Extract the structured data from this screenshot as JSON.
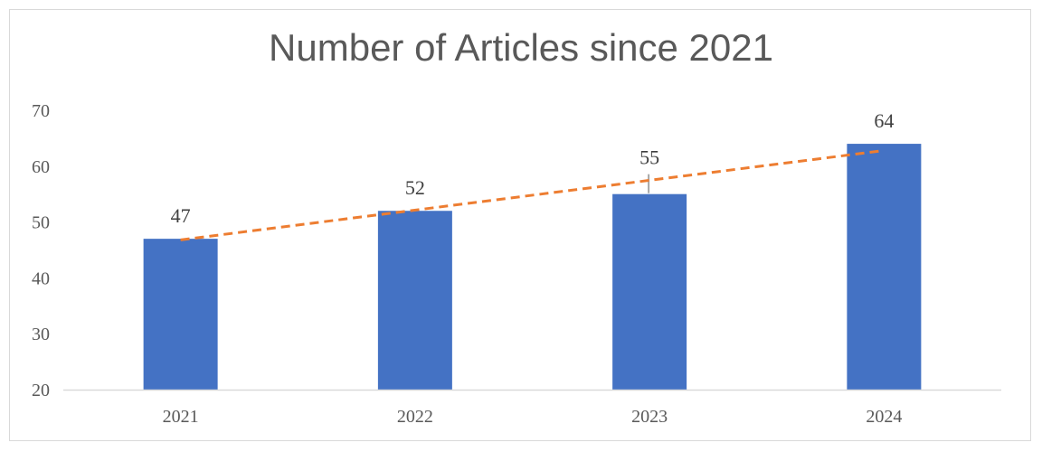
{
  "chart_data": {
    "type": "bar",
    "title": "Number of Articles since 2021",
    "xlabel": "",
    "ylabel": "",
    "categories": [
      "2021",
      "2022",
      "2023",
      "2024"
    ],
    "series": [
      {
        "values": [
          47,
          52,
          55,
          64
        ],
        "color": "#4472c4",
        "data_labels": [
          "47",
          "52",
          "55",
          "64"
        ]
      }
    ],
    "trendline": {
      "type": "linear",
      "start": 46.8,
      "end": 62.8,
      "color": "#ed7d31",
      "style": "dashed"
    },
    "ylim": [
      20,
      70
    ],
    "yticks": [
      "20",
      "30",
      "40",
      "50",
      "60",
      "70"
    ],
    "grid": false,
    "legend": "none"
  }
}
